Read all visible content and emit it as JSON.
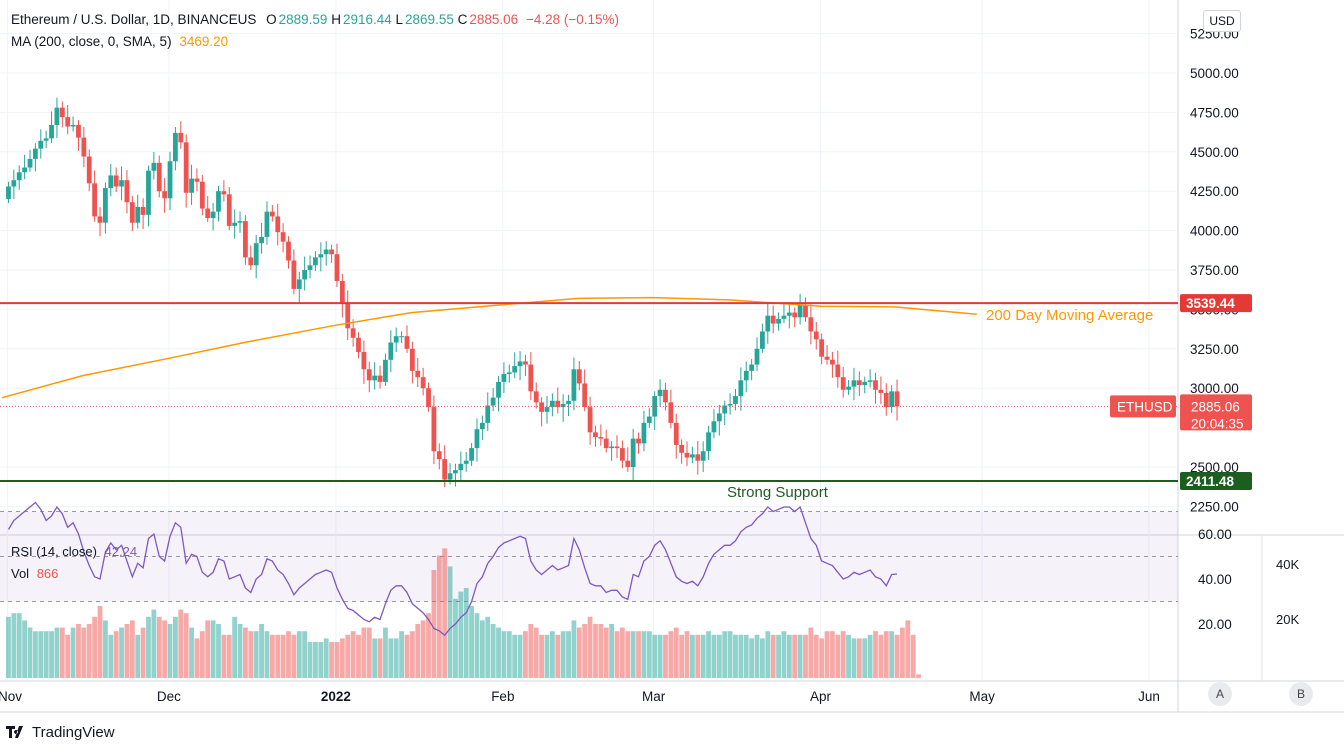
{
  "header": {
    "symbol": "Ethereum / U.S. Dollar, 1D, BINANCEUS",
    "o_label": "O",
    "o_value": "2889.59",
    "h_label": "H",
    "h_value": "2916.44",
    "l_label": "L",
    "l_value": "2869.55",
    "c_label": "C",
    "c_value": "2885.06",
    "change": "−4.28 (−0.15%)",
    "ma_label": "MA (200, close, 0, SMA, 5)",
    "ma_value": "3469.20"
  },
  "rsi_header": {
    "label": "RSI (14, close)",
    "value": "42.24"
  },
  "vol_header": {
    "label": "Vol",
    "value": "866"
  },
  "currency_button": "USD",
  "auto_button": "A",
  "log_button": "B",
  "brand": "TradingView",
  "volume_axis": [
    "40K",
    "20K"
  ],
  "colors": {
    "up": "#26a69a",
    "down": "#ef5350",
    "ma": "#ff9800",
    "resistance": "#e53935",
    "support": "#1b5e20",
    "rsi": "#7e57c2"
  },
  "chart_data": {
    "type": "candlestick",
    "y_axis": {
      "ticks": [
        2250,
        2500,
        3000,
        3250,
        3500,
        3750,
        4000,
        4250,
        4500,
        4750,
        5000,
        5250
      ],
      "tick_labels": [
        "2250.00",
        "2500.00",
        "3000.00",
        "3250.00",
        "3500.00",
        "3750.00",
        "4000.00",
        "4250.00",
        "4500.00",
        "4750.00",
        "5000.00",
        "5250.00"
      ],
      "ylim": [
        2130,
        5350
      ]
    },
    "x_axis": {
      "labels": [
        "Nov",
        "Dec",
        "2022",
        "Feb",
        "Mar",
        "Apr",
        "May",
        "Jun"
      ],
      "label_dates": [
        "2021-11-01",
        "2021-12-01",
        "2022-01-01",
        "2022-02-01",
        "2022-03-01",
        "2022-04-01",
        "2022-05-01",
        "2022-06-01"
      ],
      "start_date": "2021-10-31",
      "end_date": "2022-06-06"
    },
    "ohlc_close_series": [
      4280,
      4320,
      4370,
      4400,
      4455,
      4520,
      4570,
      4585,
      4670,
      4780,
      4720,
      4660,
      4670,
      4590,
      4470,
      4300,
      4090,
      4050,
      4270,
      4350,
      4280,
      4320,
      4180,
      4050,
      4150,
      4100,
      4380,
      4430,
      4250,
      4205,
      4440,
      4620,
      4560,
      4240,
      4330,
      4310,
      4140,
      4080,
      4120,
      4250,
      4230,
      4030,
      4050,
      4060,
      3830,
      3780,
      3920,
      3960,
      4120,
      4090,
      3990,
      3930,
      3810,
      3630,
      3690,
      3750,
      3780,
      3830,
      3850,
      3880,
      3850,
      3680,
      3540,
      3380,
      3320,
      3230,
      3120,
      3050,
      3080,
      3040,
      3180,
      3290,
      3330,
      3330,
      3250,
      3110,
      3070,
      3000,
      2880,
      2600,
      2550,
      2420,
      2460,
      2480,
      2520,
      2540,
      2620,
      2740,
      2780,
      2890,
      2940,
      3040,
      3090,
      3100,
      3140,
      3170,
      3150,
      2980,
      2910,
      2850,
      2880,
      2920,
      2880,
      2900,
      2920,
      3120,
      3030,
      2880,
      2720,
      2690,
      2680,
      2620,
      2630,
      2620,
      2540,
      2500,
      2680,
      2650,
      2780,
      2820,
      2950,
      2990,
      2910,
      2780,
      2640,
      2590,
      2560,
      2580,
      2540,
      2600,
      2720,
      2790,
      2840,
      2890,
      2900,
      2950,
      3050,
      3110,
      3150,
      3250,
      3360,
      3460,
      3410,
      3440,
      3460,
      3480,
      3450,
      3530,
      3450,
      3360,
      3310,
      3200,
      3180,
      3150,
      3070,
      2990,
      3010,
      3050,
      3020,
      3040,
      3050,
      2990,
      2970,
      2880,
      2980,
      2885
    ],
    "ohlc_first_date": "2021-11-01",
    "high": "4865 (2021-11-10)",
    "low": "2160 (2022-01-24)",
    "ma200_series": {
      "name": "MA (200, close, 0, SMA, 5)",
      "x": [
        "2021-10-31",
        "2021-11-15",
        "2021-12-01",
        "2021-12-15",
        "2022-01-01",
        "2022-01-15",
        "2022-02-01",
        "2022-02-15",
        "2022-03-01",
        "2022-03-15",
        "2022-04-01",
        "2022-04-15",
        "2022-04-30"
      ],
      "values": [
        2940,
        3080,
        3190,
        3290,
        3400,
        3480,
        3530,
        3570,
        3575,
        3560,
        3520,
        3515,
        3469.2
      ]
    },
    "horizontal_lines": [
      {
        "name": "3539.44",
        "value": 3539.44,
        "label": "200 Day Moving Average"
      },
      {
        "name": "2411.48",
        "value": 2411.48,
        "label": "Strong Support"
      }
    ],
    "last_price": {
      "symbol": "ETHUSD",
      "price": "2885.06",
      "countdown": "20:04:35",
      "value": 2885.06
    },
    "rsi": {
      "label": "RSI (14, close)",
      "value": 42.24,
      "levels": [
        30,
        50,
        70
      ],
      "tick_labels": [
        "60.00",
        "40.00",
        "20.00"
      ],
      "series": [
        62,
        66,
        68,
        70,
        72,
        74,
        71,
        66,
        68,
        72,
        69,
        63,
        65,
        60,
        52,
        46,
        41,
        40,
        52,
        56,
        53,
        55,
        48,
        41,
        47,
        45,
        58,
        60,
        50,
        48,
        59,
        65,
        63,
        47,
        51,
        50,
        43,
        41,
        43,
        49,
        48,
        40,
        41,
        42,
        36,
        34,
        40,
        42,
        49,
        48,
        44,
        42,
        38,
        33,
        36,
        38,
        40,
        42,
        43,
        44,
        43,
        36,
        31,
        27,
        26,
        24,
        22,
        21,
        23,
        22,
        29,
        35,
        37,
        37,
        34,
        29,
        27,
        25,
        22,
        18,
        17,
        15,
        18,
        20,
        23,
        25,
        30,
        38,
        41,
        47,
        50,
        54,
        56,
        57,
        58,
        59,
        58,
        48,
        44,
        42,
        44,
        46,
        44,
        45,
        46,
        58,
        53,
        45,
        38,
        37,
        37,
        34,
        35,
        35,
        32,
        31,
        42,
        41,
        48,
        50,
        55,
        57,
        53,
        47,
        41,
        39,
        38,
        39,
        37,
        41,
        47,
        51,
        53,
        55,
        55,
        57,
        61,
        63,
        64,
        67,
        69,
        72,
        70,
        71,
        72,
        72,
        70,
        72,
        65,
        58,
        55,
        48,
        47,
        46,
        43,
        40,
        41,
        43,
        42,
        43,
        44,
        41,
        40,
        37,
        42,
        42.24
      ]
    },
    "volume": {
      "label": "Vol",
      "last": "866",
      "values": [
        17,
        18,
        18,
        16,
        14,
        13,
        13,
        13,
        13,
        14,
        14,
        12,
        14,
        15,
        14,
        15,
        17,
        20,
        16,
        12,
        13,
        14,
        15,
        16,
        12,
        14,
        17,
        19,
        17,
        16,
        15,
        17,
        19,
        18,
        14,
        11,
        13,
        16,
        16,
        15,
        12,
        12,
        17,
        15,
        14,
        13,
        13,
        15,
        13,
        12,
        12,
        12,
        13,
        12,
        13,
        13,
        10,
        10,
        10,
        11,
        10,
        10,
        11,
        12,
        13,
        12,
        14,
        14,
        11,
        11,
        14,
        11,
        11,
        13,
        12,
        13,
        15,
        16,
        18,
        30,
        34,
        36,
        31,
        22,
        24,
        25,
        20,
        18,
        16,
        17,
        15,
        14,
        13,
        13,
        12,
        12,
        13,
        15,
        14,
        12,
        12,
        13,
        12,
        13,
        13,
        16,
        14,
        15,
        17,
        15,
        15,
        14,
        15,
        13,
        14,
        13,
        13,
        13,
        13,
        13,
        12,
        12,
        12,
        13,
        14,
        12,
        13,
        12,
        12,
        12,
        13,
        12,
        12,
        13,
        13,
        12,
        12,
        12,
        11,
        12,
        11,
        13,
        12,
        12,
        13,
        12,
        12,
        12,
        12,
        14,
        12,
        11,
        13,
        13,
        12,
        13,
        12,
        11,
        11,
        11,
        12,
        13,
        12,
        13,
        13,
        12,
        14,
        16,
        12,
        1
      ]
    }
  }
}
